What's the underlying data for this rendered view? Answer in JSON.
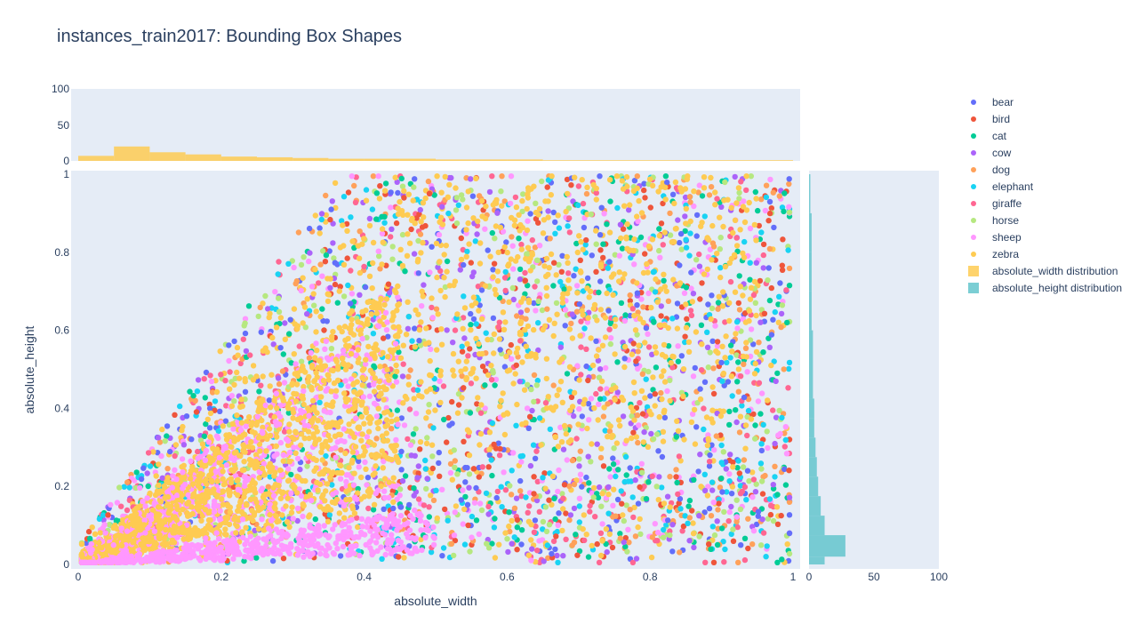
{
  "title": "instances_train2017: Bounding Box Shapes",
  "chart_data": {
    "type": "scatter",
    "title": "instances_train2017: Bounding Box Shapes",
    "xlabel": "absolute_width",
    "ylabel": "absolute_height",
    "xlim": [
      0,
      1
    ],
    "ylim": [
      0,
      1
    ],
    "x_ticks": [
      "0",
      "0.2",
      "0.4",
      "0.6",
      "0.8",
      "1"
    ],
    "y_ticks": [
      "0",
      "0.2",
      "0.4",
      "0.6",
      "0.8",
      "1"
    ],
    "grid": false,
    "legend_position": "right",
    "series": [
      {
        "name": "bear",
        "color": "#636efa"
      },
      {
        "name": "bird",
        "color": "#ef553b"
      },
      {
        "name": "cat",
        "color": "#00cc96"
      },
      {
        "name": "cow",
        "color": "#ab63fa"
      },
      {
        "name": "dog",
        "color": "#ffa15a"
      },
      {
        "name": "elephant",
        "color": "#19d3f3"
      },
      {
        "name": "giraffe",
        "color": "#ff6692"
      },
      {
        "name": "horse",
        "color": "#b6e880"
      },
      {
        "name": "sheep",
        "color": "#ff97ff"
      },
      {
        "name": "zebra",
        "color": "#fecb52"
      }
    ],
    "width_distribution": {
      "name": "absolute_width distribution",
      "color": "#fecb52",
      "axis_ticks": [
        "0",
        "50",
        "100"
      ],
      "ylim": [
        0,
        100
      ],
      "bins": [
        {
          "x0": 0.0,
          "x1": 0.05,
          "count": 7
        },
        {
          "x0": 0.05,
          "x1": 0.1,
          "count": 20
        },
        {
          "x0": 0.1,
          "x1": 0.15,
          "count": 12
        },
        {
          "x0": 0.15,
          "x1": 0.2,
          "count": 9
        },
        {
          "x0": 0.2,
          "x1": 0.25,
          "count": 6
        },
        {
          "x0": 0.25,
          "x1": 0.3,
          "count": 5
        },
        {
          "x0": 0.3,
          "x1": 0.35,
          "count": 4
        },
        {
          "x0": 0.35,
          "x1": 0.4,
          "count": 3
        },
        {
          "x0": 0.4,
          "x1": 0.45,
          "count": 3
        },
        {
          "x0": 0.45,
          "x1": 0.5,
          "count": 3
        },
        {
          "x0": 0.5,
          "x1": 0.55,
          "count": 2
        },
        {
          "x0": 0.55,
          "x1": 0.6,
          "count": 2
        },
        {
          "x0": 0.6,
          "x1": 0.65,
          "count": 2
        },
        {
          "x0": 0.65,
          "x1": 1.0,
          "count": 1
        }
      ]
    },
    "height_distribution": {
      "name": "absolute_height distribution",
      "color": "#64c6cc",
      "axis_ticks": [
        "0",
        "50",
        "100"
      ],
      "xlim": [
        0,
        100
      ],
      "bins": [
        {
          "y0": 0.0,
          "y1": 0.02,
          "count": 12
        },
        {
          "y0": 0.02,
          "y1": 0.075,
          "count": 28
        },
        {
          "y0": 0.075,
          "y1": 0.125,
          "count": 12
        },
        {
          "y0": 0.125,
          "y1": 0.175,
          "count": 9
        },
        {
          "y0": 0.175,
          "y1": 0.225,
          "count": 7
        },
        {
          "y0": 0.225,
          "y1": 0.275,
          "count": 6
        },
        {
          "y0": 0.275,
          "y1": 0.325,
          "count": 5
        },
        {
          "y0": 0.325,
          "y1": 0.375,
          "count": 4
        },
        {
          "y0": 0.375,
          "y1": 0.425,
          "count": 4
        },
        {
          "y0": 0.425,
          "y1": 0.5,
          "count": 3
        },
        {
          "y0": 0.5,
          "y1": 0.6,
          "count": 3
        },
        {
          "y0": 0.6,
          "y1": 0.7,
          "count": 2
        },
        {
          "y0": 0.7,
          "y1": 0.8,
          "count": 2
        },
        {
          "y0": 0.8,
          "y1": 0.9,
          "count": 2
        },
        {
          "y0": 0.9,
          "y1": 1.0,
          "count": 1
        }
      ]
    }
  }
}
